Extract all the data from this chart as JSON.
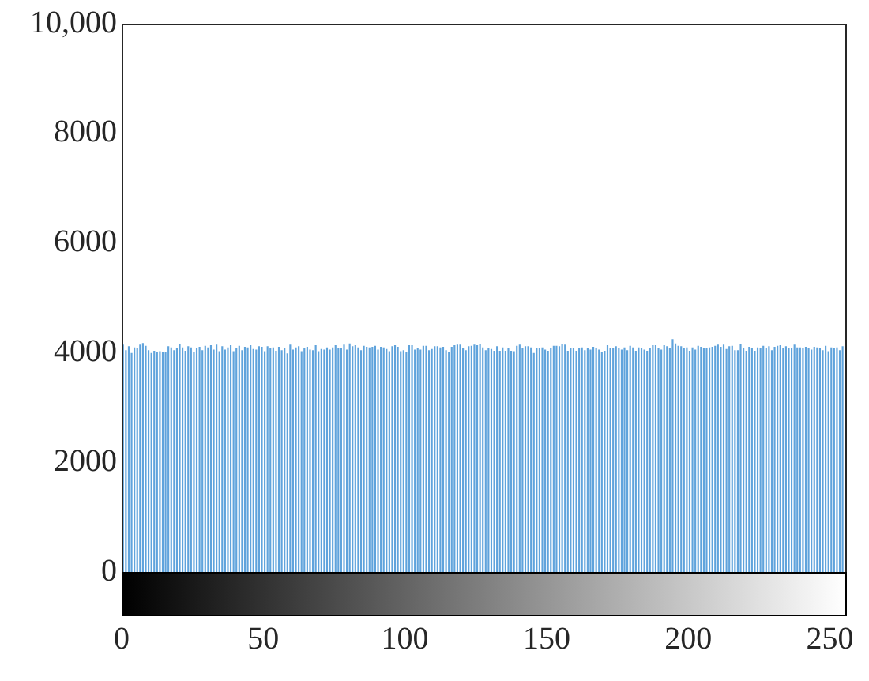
{
  "chart_data": {
    "type": "histogram",
    "bins": [
      0,
      1,
      2,
      3,
      4,
      5,
      6,
      7,
      8,
      9,
      10,
      11,
      12,
      13,
      14,
      15,
      16,
      17,
      18,
      19,
      20,
      21,
      22,
      23,
      24,
      25,
      26,
      27,
      28,
      29,
      30,
      31,
      32,
      33,
      34,
      35,
      36,
      37,
      38,
      39,
      40,
      41,
      42,
      43,
      44,
      45,
      46,
      47,
      48,
      49,
      50,
      51,
      52,
      53,
      54,
      55,
      56,
      57,
      58,
      59,
      60,
      61,
      62,
      63,
      64,
      65,
      66,
      67,
      68,
      69,
      70,
      71,
      72,
      73,
      74,
      75,
      76,
      77,
      78,
      79,
      80,
      81,
      82,
      83,
      84,
      85,
      86,
      87,
      88,
      89,
      90,
      91,
      92,
      93,
      94,
      95,
      96,
      97,
      98,
      99,
      100,
      101,
      102,
      103,
      104,
      105,
      106,
      107,
      108,
      109,
      110,
      111,
      112,
      113,
      114,
      115,
      116,
      117,
      118,
      119,
      120,
      121,
      122,
      123,
      124,
      125,
      126,
      127,
      128,
      129,
      130,
      131,
      132,
      133,
      134,
      135,
      136,
      137,
      138,
      139,
      140,
      141,
      142,
      143,
      144,
      145,
      146,
      147,
      148,
      149,
      150,
      151,
      152,
      153,
      154,
      155,
      156,
      157,
      158,
      159,
      160,
      161,
      162,
      163,
      164,
      165,
      166,
      167,
      168,
      169,
      170,
      171,
      172,
      173,
      174,
      175,
      176,
      177,
      178,
      179,
      180,
      181,
      182,
      183,
      184,
      185,
      186,
      187,
      188,
      189,
      190,
      191,
      192,
      193,
      194,
      195,
      196,
      197,
      198,
      199,
      200,
      201,
      202,
      203,
      204,
      205,
      206,
      207,
      208,
      209,
      210,
      211,
      212,
      213,
      214,
      215,
      216,
      217,
      218,
      219,
      220,
      221,
      222,
      223,
      224,
      225,
      226,
      227,
      228,
      229,
      230,
      231,
      232,
      233,
      234,
      235,
      236,
      237,
      238,
      239,
      240,
      241,
      242,
      243,
      244,
      245,
      246,
      247,
      248,
      249,
      250,
      251,
      252,
      253,
      254,
      255,
      256
    ],
    "values": [
      4150,
      4050,
      4120,
      4000,
      4100,
      4080,
      4150,
      4180,
      4130,
      4050,
      4000,
      4040,
      4020,
      4030,
      4010,
      4020,
      4120,
      4100,
      4050,
      4080,
      4160,
      4100,
      4040,
      4120,
      4100,
      4020,
      4080,
      4110,
      4050,
      4130,
      4100,
      4140,
      4060,
      4150,
      4030,
      4120,
      4060,
      4100,
      4140,
      4030,
      4080,
      4130,
      4050,
      4110,
      4100,
      4140,
      4070,
      4060,
      4120,
      4110,
      4030,
      4120,
      4080,
      4100,
      4040,
      4110,
      4050,
      4080,
      3990,
      4150,
      4060,
      4100,
      4120,
      4030,
      4090,
      4110,
      4060,
      4050,
      4140,
      4030,
      4070,
      4060,
      4100,
      4060,
      4100,
      4140,
      4080,
      4090,
      4150,
      4060,
      4170,
      4120,
      4140,
      4100,
      4050,
      4130,
      4110,
      4100,
      4110,
      4130,
      4060,
      4110,
      4100,
      4070,
      4030,
      4120,
      4140,
      4110,
      4030,
      4050,
      4010,
      4140,
      4140,
      4060,
      4080,
      4060,
      4130,
      4130,
      4050,
      4070,
      4120,
      4120,
      4100,
      4110,
      4050,
      4020,
      4110,
      4140,
      4150,
      4150,
      4080,
      4050,
      4120,
      4130,
      4150,
      4140,
      4160,
      4100,
      4050,
      4080,
      4070,
      4040,
      4120,
      4040,
      4100,
      4040,
      4090,
      4040,
      4030,
      4130,
      4150,
      4080,
      4120,
      4120,
      4100,
      4000,
      4080,
      4080,
      4100,
      4060,
      4040,
      4090,
      4130,
      4130,
      4120,
      4160,
      4150,
      4040,
      4090,
      4080,
      4040,
      4090,
      4100,
      4050,
      4080,
      4060,
      4110,
      4080,
      4060,
      4010,
      4040,
      4140,
      4090,
      4080,
      4120,
      4080,
      4060,
      4100,
      4050,
      4130,
      4100,
      4040,
      4100,
      4090,
      4060,
      4040,
      4080,
      4140,
      4140,
      4080,
      4060,
      4140,
      4120,
      4080,
      4250,
      4170,
      4130,
      4120,
      4090,
      4100,
      4040,
      4100,
      4060,
      4130,
      4110,
      4090,
      4080,
      4100,
      4110,
      4130,
      4150,
      4110,
      4150,
      4070,
      4120,
      4130,
      4050,
      4050,
      4160,
      4080,
      4040,
      4110,
      4090,
      4040,
      4100,
      4080,
      4130,
      4080,
      4120,
      4050,
      4110,
      4130,
      4140,
      4080,
      4120,
      4080,
      4080,
      4150,
      4100,
      4100,
      4080,
      4110,
      4080,
      4060,
      4110,
      4100,
      4080,
      4050,
      4130,
      4030,
      4100,
      4080,
      4100,
      4050,
      4120,
      4110
    ],
    "color": "#5fa3dc",
    "xlim": [
      0,
      256
    ],
    "xticks": [
      0,
      50,
      100,
      150,
      200,
      250
    ],
    "ylim": [
      -800,
      10000
    ],
    "yticks": [
      0,
      2000,
      4000,
      6000,
      8000,
      {
        "value": 10000,
        "label": "10,000"
      }
    ],
    "grid": false
  }
}
